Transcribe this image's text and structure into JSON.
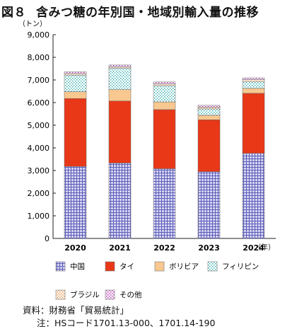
{
  "title": {
    "figure_label": "図８",
    "text": "含みつ糖の年別国・地域別輸入量の推移"
  },
  "footnotes": {
    "source": "資料：財務省「貿易統計」",
    "note": "注：HSコード1701.13-000、1701.14-190"
  },
  "chart_data": {
    "type": "bar",
    "stacked": true,
    "y_unit_label": "（トン）",
    "x_unit_label": "（年）",
    "ylim": [
      0,
      9000
    ],
    "yticks": [
      0,
      1000,
      2000,
      3000,
      4000,
      5000,
      6000,
      7000,
      8000,
      9000
    ],
    "ytick_labels": [
      "0",
      "1,000",
      "2,000",
      "3,000",
      "4,000",
      "5,000",
      "6,000",
      "7,000",
      "8,000",
      "9,000"
    ],
    "grid": false,
    "legend_position": "bottom",
    "categories": [
      "2020",
      "2021",
      "2022",
      "2023",
      "2024"
    ],
    "series": [
      {
        "name": "中国",
        "values": [
          3180,
          3330,
          3080,
          2950,
          3760
        ],
        "color": "#7777cc",
        "pattern": "grid-purple"
      },
      {
        "name": "タイ",
        "values": [
          3000,
          2740,
          2610,
          2290,
          2650
        ],
        "color": "#e83818",
        "pattern": "solid-red"
      },
      {
        "name": "ボリビア",
        "values": [
          300,
          500,
          340,
          200,
          220
        ],
        "color": "#f8c890",
        "pattern": "solid-peach"
      },
      {
        "name": "フィリピン",
        "values": [
          730,
          950,
          720,
          280,
          300
        ],
        "color": "#40b8b8",
        "pattern": "dots-teal"
      },
      {
        "name": "ブラジル",
        "values": [
          70,
          60,
          80,
          80,
          80
        ],
        "color": "#e8a868",
        "pattern": "dots-orange"
      },
      {
        "name": "その他",
        "values": [
          80,
          80,
          80,
          80,
          80
        ],
        "color": "#c060c0",
        "pattern": "dots-magenta"
      }
    ]
  }
}
